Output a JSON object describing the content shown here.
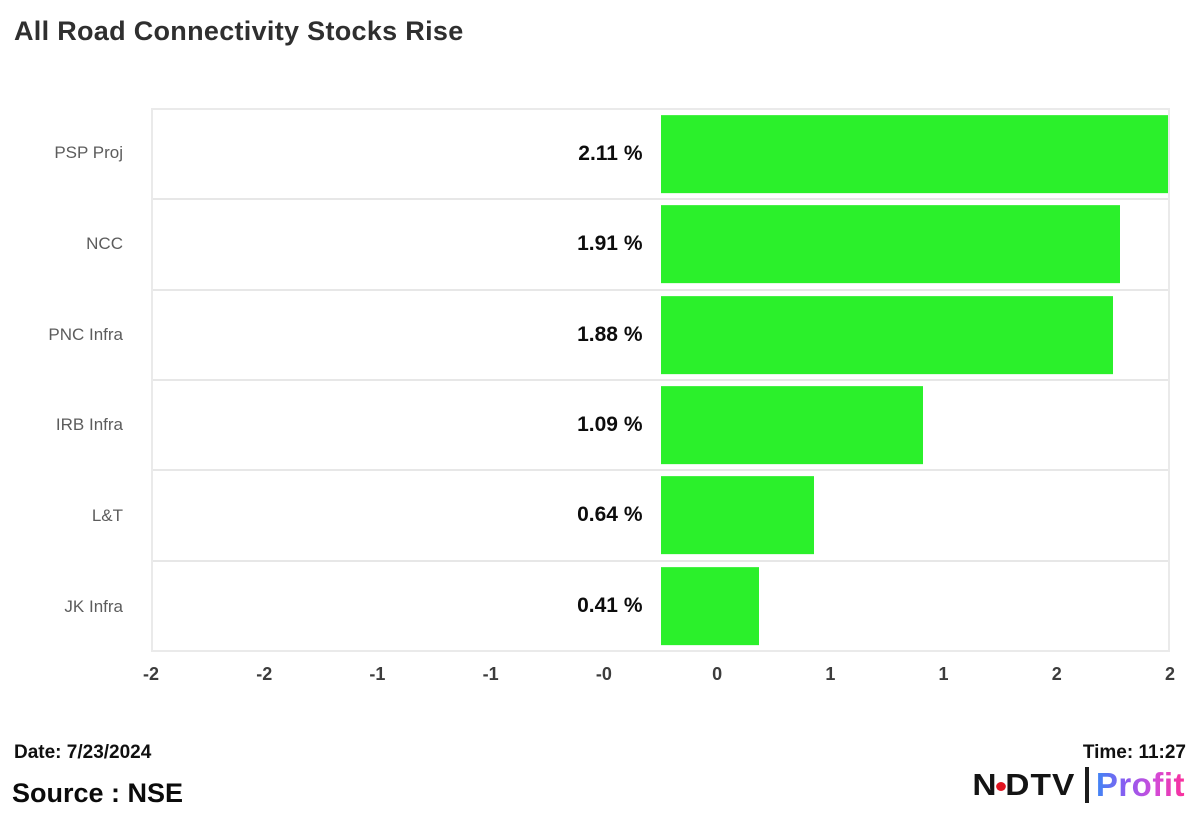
{
  "title": "All Road Connectivity Stocks Rise",
  "chart_data": {
    "type": "bar",
    "orientation": "horizontal",
    "title": "All Road Connectivity Stocks Rise",
    "categories": [
      "PSP Proj",
      "NCC",
      "PNC Infra",
      "IRB Infra",
      "L&T",
      "JK Infra"
    ],
    "values": [
      2.11,
      1.91,
      1.88,
      1.09,
      0.64,
      0.41
    ],
    "value_labels": [
      "2.11 %",
      "1.91 %",
      "1.88 %",
      "1.09 %",
      "0.64 %",
      "0.41 %"
    ],
    "x_tick_labels": [
      "-2",
      "-2",
      "-1",
      "-1",
      "-0",
      "0",
      "1",
      "1",
      "2",
      "2"
    ],
    "xlim": [
      -2.25,
      2.25
    ],
    "bar_scale_max": 2.11,
    "bar_color": "#2bf02b",
    "grid": "horizontal-row-separators-only",
    "legend": "none",
    "xlabel": "",
    "ylabel": ""
  },
  "footer": {
    "date_label": "Date: 7/23/2024",
    "time_label": "Time: 11:27",
    "source_label": "Source : NSE",
    "logo": {
      "ndtv_part1": "N",
      "ndtv_part2": "DTV",
      "profit": "Profit",
      "dot_color": "#e0131f",
      "profit_gradient": [
        "#3e86f4",
        "#8a5cf1",
        "#d24bd8",
        "#fb2f9a"
      ]
    }
  }
}
